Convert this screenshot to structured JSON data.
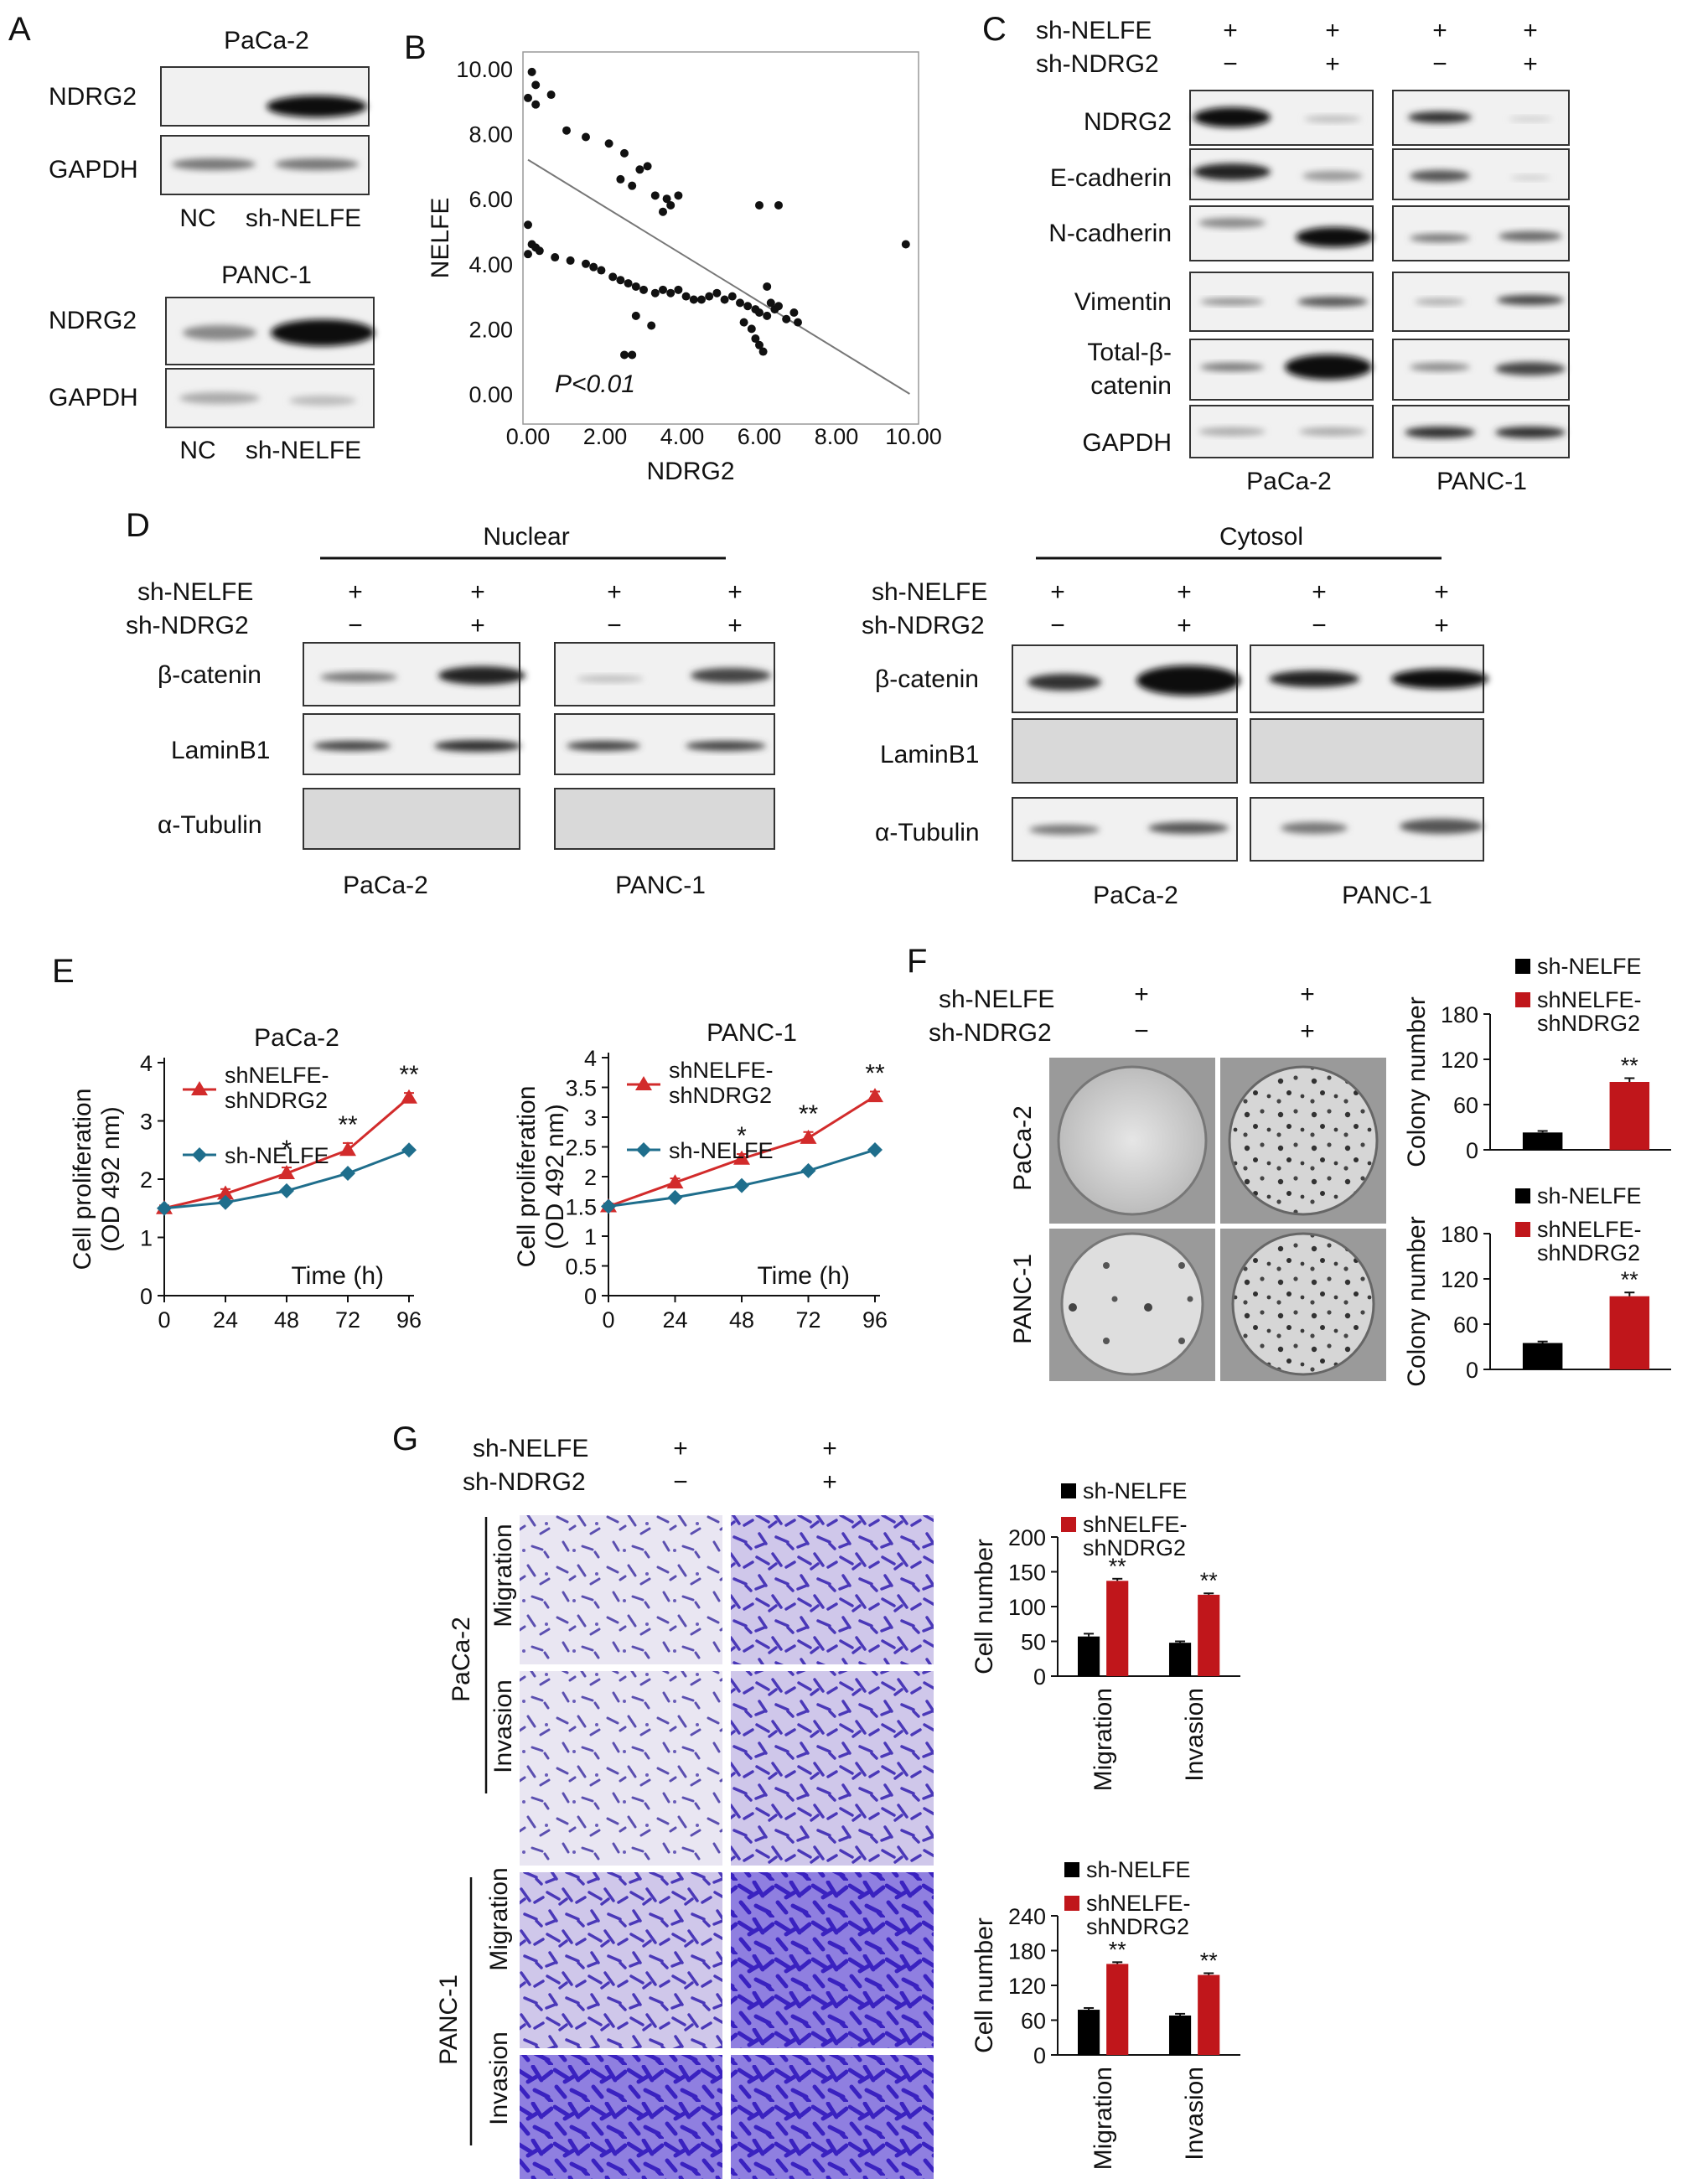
{
  "panels": {
    "A": {
      "letter": "A",
      "blocks": [
        {
          "cell_line": "PaCa-2",
          "rows": [
            "NDRG2",
            "GAPDH"
          ],
          "lanes": [
            "NC",
            "sh-NELFE"
          ]
        },
        {
          "cell_line": "PANC-1",
          "rows": [
            "NDRG2",
            "GAPDH"
          ],
          "lanes": [
            "NC",
            "sh-NELFE"
          ]
        }
      ]
    },
    "C": {
      "letter": "C",
      "conditions": [
        {
          "name": "sh-NELFE",
          "values": [
            "+",
            "+",
            "+",
            "+"
          ]
        },
        {
          "name": "sh-NDRG2",
          "values": [
            "−",
            "+",
            "−",
            "+"
          ]
        }
      ],
      "rows": [
        "NDRG2",
        "E-cadherin",
        "N-cadherin",
        "Vimentin",
        "Total-β-",
        "catenin",
        "GAPDH"
      ],
      "cell_lines": [
        "PaCa-2",
        "PANC-1"
      ]
    },
    "D": {
      "letter": "D",
      "fractions": [
        "Nuclear",
        "Cytosol"
      ],
      "conditions": [
        {
          "name": "sh-NELFE",
          "values": [
            "+",
            "+",
            "+",
            "+"
          ]
        },
        {
          "name": "sh-NDRG2",
          "values": [
            "−",
            "+",
            "−",
            "+"
          ]
        }
      ],
      "rows": [
        "β-catenin",
        "LaminB1",
        "α-Tubulin"
      ],
      "cell_lines": [
        "PaCa-2",
        "PANC-1"
      ]
    },
    "F": {
      "letter": "F",
      "conditions": [
        {
          "name": "sh-NELFE",
          "values": [
            "+",
            "+"
          ]
        },
        {
          "name": "sh-NDRG2",
          "values": [
            "−",
            "+"
          ]
        }
      ],
      "cell_lines": [
        "PaCa-2",
        "PANC-1"
      ]
    },
    "G": {
      "letter": "G",
      "conditions": [
        {
          "name": "sh-NELFE",
          "values": [
            "+",
            "+"
          ]
        },
        {
          "name": "sh-NDRG2",
          "values": [
            "−",
            "+"
          ]
        }
      ],
      "cell_lines": [
        "PaCa-2",
        "PANC-1"
      ],
      "assays": [
        "Migration",
        "Invasion"
      ]
    }
  },
  "chart_data": [
    {
      "id": "B",
      "type": "scatter",
      "letter": "B",
      "xlabel": "NDRG2",
      "ylabel": "NELFE",
      "xlim": [
        0,
        10
      ],
      "ylim": [
        0,
        10
      ],
      "xticks": [
        "0.00",
        "2.00",
        "4.00",
        "6.00",
        "8.00",
        "10.00"
      ],
      "yticks": [
        "0.00",
        "2.00",
        "4.00",
        "6.00",
        "8.00",
        "10.00"
      ],
      "annotation": "P<0.01",
      "fit_line": [
        [
          0,
          7.2
        ],
        [
          9.9,
          0
        ]
      ],
      "points": [
        [
          0.1,
          9.9
        ],
        [
          0.2,
          9.5
        ],
        [
          0.0,
          9.1
        ],
        [
          0.2,
          8.9
        ],
        [
          0.6,
          9.2
        ],
        [
          1.0,
          8.1
        ],
        [
          1.5,
          7.9
        ],
        [
          2.1,
          7.7
        ],
        [
          2.5,
          7.4
        ],
        [
          2.9,
          6.9
        ],
        [
          3.1,
          7.0
        ],
        [
          2.4,
          6.6
        ],
        [
          2.7,
          6.4
        ],
        [
          3.3,
          6.1
        ],
        [
          3.6,
          6.0
        ],
        [
          3.9,
          6.1
        ],
        [
          3.5,
          5.6
        ],
        [
          3.7,
          5.8
        ],
        [
          0.0,
          5.2
        ],
        [
          0.1,
          4.6
        ],
        [
          0.2,
          4.5
        ],
        [
          0.3,
          4.4
        ],
        [
          0.0,
          4.3
        ],
        [
          0.7,
          4.2
        ],
        [
          1.1,
          4.1
        ],
        [
          1.5,
          4.0
        ],
        [
          1.7,
          3.9
        ],
        [
          1.9,
          3.8
        ],
        [
          2.2,
          3.6
        ],
        [
          2.4,
          3.5
        ],
        [
          2.6,
          3.4
        ],
        [
          2.8,
          3.3
        ],
        [
          3.0,
          3.2
        ],
        [
          3.3,
          3.1
        ],
        [
          3.5,
          3.2
        ],
        [
          3.7,
          3.1
        ],
        [
          3.9,
          3.2
        ],
        [
          4.1,
          3.0
        ],
        [
          4.3,
          2.9
        ],
        [
          4.5,
          2.9
        ],
        [
          4.7,
          3.0
        ],
        [
          4.9,
          3.1
        ],
        [
          5.1,
          2.9
        ],
        [
          5.3,
          3.0
        ],
        [
          5.5,
          2.8
        ],
        [
          5.7,
          2.7
        ],
        [
          5.9,
          2.6
        ],
        [
          6.0,
          2.5
        ],
        [
          6.2,
          2.4
        ],
        [
          6.4,
          2.6
        ],
        [
          6.5,
          2.7
        ],
        [
          6.7,
          2.3
        ],
        [
          6.9,
          2.5
        ],
        [
          7.0,
          2.2
        ],
        [
          5.6,
          2.2
        ],
        [
          5.8,
          2.0
        ],
        [
          5.9,
          1.7
        ],
        [
          6.0,
          1.5
        ],
        [
          6.1,
          1.3
        ],
        [
          6.3,
          2.8
        ],
        [
          6.2,
          3.3
        ],
        [
          6.0,
          5.8
        ],
        [
          6.5,
          5.8
        ],
        [
          2.5,
          1.2
        ],
        [
          2.7,
          1.2
        ],
        [
          3.2,
          2.1
        ],
        [
          2.8,
          2.4
        ],
        [
          9.8,
          4.6
        ]
      ]
    },
    {
      "id": "E1",
      "type": "line",
      "title": "PaCa-2",
      "letter": "E",
      "ylabel_lines": [
        "Cell proliferation",
        "(OD 492 nm)"
      ],
      "xlabel": "Time (h)",
      "x": [
        0,
        24,
        48,
        72,
        96
      ],
      "ylim": [
        0,
        4
      ],
      "yticks": [
        0,
        1,
        2,
        3,
        4
      ],
      "series": [
        {
          "name": "shNELFE-\nshNDRG2",
          "legend_lines": [
            "shNELFE-",
            "shNDRG2"
          ],
          "color": "#d22b2b",
          "marker": "triangle",
          "values": [
            1.5,
            1.75,
            2.1,
            2.5,
            3.4
          ],
          "errors": [
            0.05,
            0.08,
            0.1,
            0.12,
            0.08
          ]
        },
        {
          "name": "sh-NELFE",
          "legend_lines": [
            "sh-NELFE"
          ],
          "color": "#1f6e8c",
          "marker": "diamond",
          "values": [
            1.5,
            1.6,
            1.8,
            2.1,
            2.5
          ],
          "errors": [
            0,
            0,
            0,
            0,
            0
          ]
        }
      ],
      "significance": [
        {
          "x": 48,
          "label": "*"
        },
        {
          "x": 72,
          "label": "**"
        },
        {
          "x": 96,
          "label": "**"
        }
      ]
    },
    {
      "id": "E2",
      "type": "line",
      "title": "PANC-1",
      "ylabel_lines": [
        "Cell proliferation",
        "(OD 492 nm)"
      ],
      "xlabel": "Time (h)",
      "x": [
        0,
        24,
        48,
        72,
        96
      ],
      "ylim": [
        0,
        4
      ],
      "yticks": [
        0,
        0.5,
        1,
        1.5,
        2,
        2.5,
        3,
        3.5,
        4
      ],
      "ytick_labels": [
        "0",
        "0.5",
        "1",
        "1.5",
        "2",
        "2.5",
        "3",
        "3.5",
        "4"
      ],
      "series": [
        {
          "name": "shNELFE-\nshNDRG2",
          "legend_lines": [
            "shNELFE-",
            "shNDRG2"
          ],
          "color": "#d22b2b",
          "marker": "triangle",
          "values": [
            1.5,
            1.9,
            2.3,
            2.65,
            3.35
          ],
          "errors": [
            0.05,
            0.07,
            0.08,
            0.1,
            0.08
          ]
        },
        {
          "name": "sh-NELFE",
          "legend_lines": [
            "sh-NELFE"
          ],
          "color": "#1f6e8c",
          "marker": "diamond",
          "values": [
            1.5,
            1.65,
            1.85,
            2.1,
            2.45
          ],
          "errors": [
            0,
            0,
            0,
            0,
            0
          ]
        }
      ],
      "significance": [
        {
          "x": 48,
          "label": "*"
        },
        {
          "x": 72,
          "label": "**"
        },
        {
          "x": 96,
          "label": "**"
        }
      ]
    },
    {
      "id": "F1",
      "type": "bar",
      "ylabel": "Colony number",
      "ylim": [
        0,
        180
      ],
      "yticks": [
        0,
        60,
        120,
        180
      ],
      "categories": [
        "sh-NELFE",
        "shNELFE-shNDRG2"
      ],
      "legend": [
        {
          "lines": [
            "sh-NELFE"
          ],
          "color": "#000000"
        },
        {
          "lines": [
            "shNELFE-",
            "shNDRG2"
          ],
          "color": "#c0161b"
        }
      ],
      "values": [
        23,
        90
      ],
      "errors": [
        2,
        5
      ],
      "colors": [
        "#000000",
        "#c0161b"
      ],
      "significance": [
        "",
        "**"
      ]
    },
    {
      "id": "F2",
      "type": "bar",
      "ylabel": "Colony number",
      "ylim": [
        0,
        180
      ],
      "yticks": [
        0,
        60,
        120,
        180
      ],
      "categories": [
        "sh-NELFE",
        "shNELFE-shNDRG2"
      ],
      "legend": [
        {
          "lines": [
            "sh-NELFE"
          ],
          "color": "#000000"
        },
        {
          "lines": [
            "shNELFE-",
            "shNDRG2"
          ],
          "color": "#c0161b"
        }
      ],
      "values": [
        35,
        97
      ],
      "errors": [
        2,
        5
      ],
      "colors": [
        "#000000",
        "#c0161b"
      ],
      "significance": [
        "",
        "**"
      ]
    },
    {
      "id": "G1",
      "type": "bar",
      "ylabel": "Cell number",
      "ylim": [
        0,
        200
      ],
      "yticks": [
        0,
        50,
        100,
        150,
        200
      ],
      "categories": [
        "Migration",
        "Invasion"
      ],
      "legend": [
        {
          "lines": [
            "sh-NELFE"
          ],
          "color": "#000000"
        },
        {
          "lines": [
            "shNELFE-",
            "shNDRG2"
          ],
          "color": "#c0161b"
        }
      ],
      "series": [
        {
          "name": "sh-NELFE",
          "color": "#000000",
          "values": [
            57,
            48
          ],
          "errors": [
            4,
            2
          ]
        },
        {
          "name": "shNELFE-shNDRG2",
          "color": "#c0161b",
          "values": [
            137,
            117
          ],
          "errors": [
            3,
            2
          ]
        }
      ],
      "significance": [
        "**",
        "**"
      ]
    },
    {
      "id": "G2",
      "type": "bar",
      "ylabel": "Cell number",
      "ylim": [
        0,
        240
      ],
      "yticks": [
        0,
        60,
        120,
        180,
        240
      ],
      "categories": [
        "Migration",
        "Invasion"
      ],
      "legend": [
        {
          "lines": [
            "sh-NELFE"
          ],
          "color": "#000000"
        },
        {
          "lines": [
            "shNELFE-",
            "shNDRG2"
          ],
          "color": "#c0161b"
        }
      ],
      "series": [
        {
          "name": "sh-NELFE",
          "color": "#000000",
          "values": [
            78,
            68
          ],
          "errors": [
            3,
            3
          ]
        },
        {
          "name": "shNELFE-shNDRG2",
          "color": "#c0161b",
          "values": [
            157,
            138
          ],
          "errors": [
            3,
            3
          ]
        }
      ],
      "significance": [
        "**",
        "**"
      ]
    }
  ]
}
